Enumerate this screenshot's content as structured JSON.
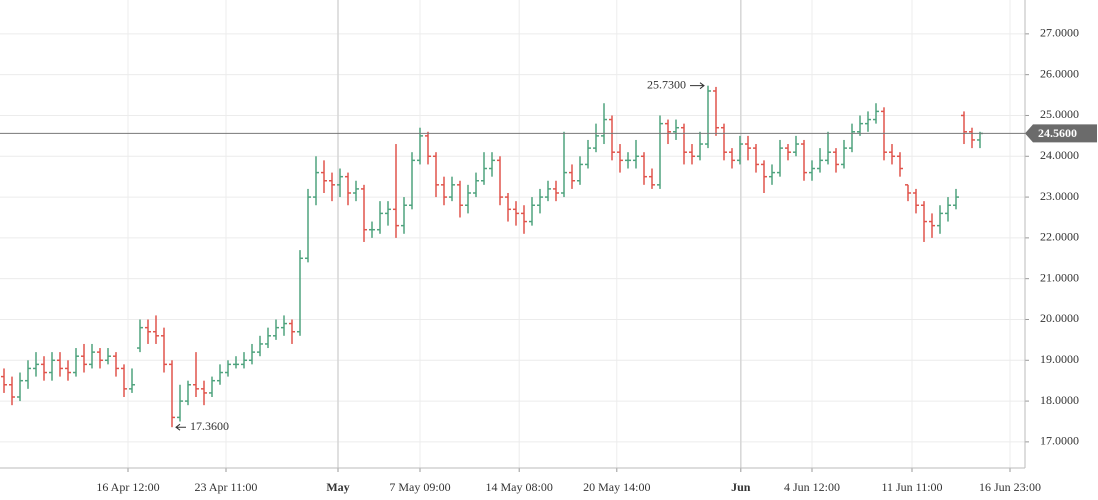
{
  "chart_data": {
    "type": "ohlc",
    "up_color": "#4fa37e",
    "down_color": "#e0544c",
    "ylim": [
      16.36,
      27.83
    ],
    "yticks": [
      {
        "value": 17,
        "label": "17.0000"
      },
      {
        "value": 18,
        "label": "18.0000"
      },
      {
        "value": 19,
        "label": "19.0000"
      },
      {
        "value": 20,
        "label": "20.0000"
      },
      {
        "value": 21,
        "label": "21.0000"
      },
      {
        "value": 22,
        "label": "22.0000"
      },
      {
        "value": 23,
        "label": "23.0000"
      },
      {
        "value": 24,
        "label": "24.0000"
      },
      {
        "value": 25,
        "label": "25.0000"
      },
      {
        "value": 26,
        "label": "26.0000"
      },
      {
        "value": 27,
        "label": "27.0000"
      }
    ],
    "xlim": [
      -0.5,
      127.5
    ],
    "xticks": [
      {
        "value": 15.5,
        "label": "16 Apr 12:00"
      },
      {
        "value": 27.75,
        "label": "23 Apr 11:00"
      },
      {
        "value": 41.75,
        "label": "May"
      },
      {
        "value": 52,
        "label": "7 May 09:00"
      },
      {
        "value": 64.4,
        "label": "14 May 08:00"
      },
      {
        "value": 76.6,
        "label": "20 May 14:00"
      },
      {
        "value": 92.1,
        "label": "Jun"
      },
      {
        "value": 101,
        "label": "4 Jun 12:00"
      },
      {
        "value": 113.5,
        "label": "11 Jun 11:00"
      },
      {
        "value": 125.75,
        "label": "16 Jun 23:00"
      }
    ],
    "grid": true,
    "high_label": {
      "value": 25.73,
      "label": "25.7300"
    },
    "low_label": {
      "value": 17.36,
      "label": "17.3600"
    },
    "last_price": {
      "value": 24.56,
      "label": "24.5600"
    },
    "ohlc": [
      [
        18.6,
        18.8,
        18.2,
        18.4
      ],
      [
        18.4,
        18.6,
        17.9,
        18.1
      ],
      [
        18.1,
        18.7,
        18.0,
        18.5
      ],
      [
        18.5,
        19.0,
        18.3,
        18.8
      ],
      [
        18.8,
        19.2,
        18.6,
        18.9
      ],
      [
        18.9,
        19.1,
        18.5,
        18.7
      ],
      [
        18.7,
        19.2,
        18.5,
        19.0
      ],
      [
        19.0,
        19.2,
        18.6,
        18.8
      ],
      [
        18.8,
        19.0,
        18.5,
        18.7
      ],
      [
        18.7,
        19.3,
        18.6,
        19.1
      ],
      [
        19.1,
        19.4,
        18.7,
        18.9
      ],
      [
        18.9,
        19.4,
        18.8,
        19.2
      ],
      [
        19.2,
        19.3,
        18.8,
        19.0
      ],
      [
        19.0,
        19.3,
        18.9,
        19.1
      ],
      [
        19.1,
        19.2,
        18.6,
        18.8
      ],
      [
        18.8,
        18.9,
        18.1,
        18.3
      ],
      [
        18.3,
        18.8,
        18.2,
        18.4
      ],
      [
        19.3,
        20.0,
        19.2,
        19.8
      ],
      [
        19.8,
        20.0,
        19.4,
        19.7
      ],
      [
        19.7,
        20.1,
        19.4,
        19.6
      ],
      [
        19.6,
        19.8,
        18.7,
        18.9
      ],
      [
        18.9,
        19.0,
        17.36,
        17.6
      ],
      [
        17.6,
        18.4,
        17.5,
        18.0
      ],
      [
        18.0,
        18.5,
        17.9,
        18.4
      ],
      [
        18.4,
        19.2,
        18.1,
        18.3
      ],
      [
        18.3,
        18.5,
        17.9,
        18.2
      ],
      [
        18.2,
        18.6,
        18.1,
        18.5
      ],
      [
        18.5,
        18.9,
        18.4,
        18.7
      ],
      [
        18.7,
        19.0,
        18.6,
        18.9
      ],
      [
        18.9,
        19.1,
        18.8,
        18.9
      ],
      [
        18.9,
        19.2,
        18.8,
        19.0
      ],
      [
        19.0,
        19.4,
        18.9,
        19.2
      ],
      [
        19.2,
        19.6,
        19.1,
        19.4
      ],
      [
        19.4,
        19.8,
        19.3,
        19.6
      ],
      [
        19.6,
        20.0,
        19.5,
        19.8
      ],
      [
        19.8,
        20.1,
        19.6,
        19.9
      ],
      [
        19.9,
        20.0,
        19.4,
        19.7
      ],
      [
        19.7,
        21.7,
        19.6,
        21.5
      ],
      [
        21.5,
        23.2,
        21.4,
        23.0
      ],
      [
        23.0,
        24.0,
        22.8,
        23.6
      ],
      [
        23.6,
        23.9,
        23.1,
        23.4
      ],
      [
        23.4,
        23.6,
        22.9,
        23.3
      ],
      [
        23.3,
        23.7,
        23.0,
        23.5
      ],
      [
        23.5,
        23.6,
        22.8,
        23.1
      ],
      [
        23.1,
        23.4,
        22.9,
        23.2
      ],
      [
        23.2,
        23.3,
        21.9,
        22.2
      ],
      [
        22.2,
        22.4,
        22.0,
        22.2
      ],
      [
        22.2,
        22.9,
        22.1,
        22.6
      ],
      [
        22.6,
        22.9,
        22.3,
        22.7
      ],
      [
        22.7,
        24.3,
        22.0,
        22.3
      ],
      [
        22.3,
        23.0,
        22.1,
        22.8
      ],
      [
        22.8,
        24.1,
        22.7,
        23.9
      ],
      [
        23.9,
        24.7,
        23.8,
        24.5
      ],
      [
        24.5,
        24.6,
        23.8,
        24.0
      ],
      [
        24.0,
        24.1,
        23.0,
        23.3
      ],
      [
        23.3,
        23.5,
        22.8,
        23.0
      ],
      [
        23.0,
        23.5,
        22.9,
        23.3
      ],
      [
        23.3,
        23.4,
        22.5,
        22.8
      ],
      [
        22.8,
        23.3,
        22.6,
        23.1
      ],
      [
        23.1,
        23.6,
        23.0,
        23.4
      ],
      [
        23.4,
        24.1,
        23.3,
        23.7
      ],
      [
        23.7,
        24.1,
        23.5,
        23.9
      ],
      [
        23.9,
        24.0,
        22.8,
        23.0
      ],
      [
        23.0,
        23.1,
        22.4,
        22.7
      ],
      [
        22.7,
        22.9,
        22.3,
        22.6
      ],
      [
        22.6,
        22.8,
        22.1,
        22.4
      ],
      [
        22.4,
        23.0,
        22.3,
        22.8
      ],
      [
        22.8,
        23.2,
        22.6,
        23.0
      ],
      [
        23.0,
        23.4,
        22.9,
        23.2
      ],
      [
        23.2,
        23.4,
        22.9,
        23.1
      ],
      [
        23.1,
        24.6,
        23.0,
        23.6
      ],
      [
        23.6,
        23.8,
        23.2,
        23.4
      ],
      [
        23.4,
        24.0,
        23.3,
        23.8
      ],
      [
        23.8,
        24.4,
        23.7,
        24.2
      ],
      [
        24.2,
        24.8,
        24.1,
        24.5
      ],
      [
        24.5,
        25.3,
        24.3,
        24.9
      ],
      [
        24.9,
        25.0,
        23.9,
        24.1
      ],
      [
        24.1,
        24.3,
        23.6,
        23.9
      ],
      [
        23.9,
        24.1,
        23.7,
        23.9
      ],
      [
        23.9,
        24.4,
        23.7,
        24.0
      ],
      [
        24.0,
        24.1,
        23.3,
        23.5
      ],
      [
        23.5,
        23.7,
        23.2,
        23.3
      ],
      [
        23.3,
        25.0,
        23.2,
        24.8
      ],
      [
        24.8,
        24.9,
        24.3,
        24.6
      ],
      [
        24.6,
        24.9,
        24.4,
        24.7
      ],
      [
        24.7,
        24.8,
        23.8,
        24.1
      ],
      [
        24.1,
        24.3,
        23.8,
        24.0
      ],
      [
        24.0,
        24.6,
        23.9,
        24.3
      ],
      [
        24.3,
        25.73,
        24.2,
        25.6
      ],
      [
        25.6,
        25.7,
        24.5,
        24.7
      ],
      [
        24.7,
        24.8,
        23.9,
        24.1
      ],
      [
        24.1,
        24.2,
        23.7,
        23.9
      ],
      [
        23.9,
        24.5,
        23.8,
        24.3
      ],
      [
        24.3,
        24.5,
        23.9,
        24.2
      ],
      [
        24.2,
        24.3,
        23.6,
        23.8
      ],
      [
        23.8,
        23.9,
        23.1,
        23.5
      ],
      [
        23.5,
        23.8,
        23.3,
        23.6
      ],
      [
        23.6,
        24.4,
        23.5,
        24.2
      ],
      [
        24.2,
        24.3,
        23.9,
        24.1
      ],
      [
        24.1,
        24.5,
        24.0,
        24.3
      ],
      [
        24.3,
        24.4,
        23.4,
        23.6
      ],
      [
        23.6,
        23.9,
        23.4,
        23.7
      ],
      [
        23.7,
        24.2,
        23.6,
        23.9
      ],
      [
        23.9,
        24.6,
        23.8,
        24.1
      ],
      [
        24.1,
        24.2,
        23.6,
        23.8
      ],
      [
        23.8,
        24.4,
        23.7,
        24.2
      ],
      [
        24.2,
        24.8,
        24.1,
        24.6
      ],
      [
        24.6,
        25.0,
        24.5,
        24.8
      ],
      [
        24.8,
        25.1,
        24.6,
        24.9
      ],
      [
        24.9,
        25.3,
        24.8,
        25.1
      ],
      [
        25.1,
        25.2,
        23.9,
        24.1
      ],
      [
        24.1,
        24.3,
        23.8,
        24.0
      ],
      [
        24.0,
        24.1,
        23.5,
        23.7
      ],
      [
        23.3,
        23.3,
        22.9,
        23.1
      ],
      [
        23.1,
        23.2,
        22.6,
        22.8
      ],
      [
        22.8,
        22.9,
        21.9,
        22.4
      ],
      [
        22.4,
        22.6,
        22.0,
        22.3
      ],
      [
        22.3,
        22.8,
        22.1,
        22.6
      ],
      [
        22.6,
        23.0,
        22.4,
        22.8
      ],
      [
        22.8,
        23.2,
        22.7,
        23.0
      ],
      [
        25.0,
        25.1,
        24.3,
        24.6
      ],
      [
        24.6,
        24.7,
        24.2,
        24.4
      ],
      [
        24.4,
        24.6,
        24.2,
        24.56
      ]
    ]
  }
}
